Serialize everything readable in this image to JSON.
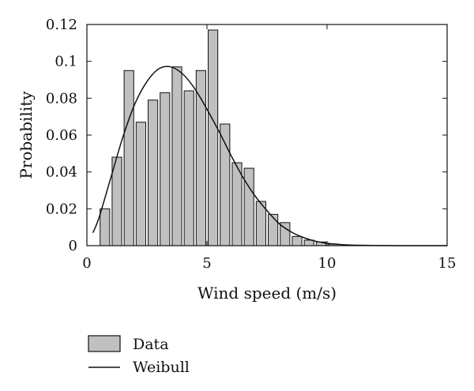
{
  "chart_data": {
    "type": "bar",
    "xlabel": "Wind speed (m/s)",
    "ylabel": "Probability",
    "xlim": [
      0,
      15
    ],
    "ylim": [
      0,
      0.12
    ],
    "xticks": [
      "0",
      "5",
      "10",
      "15"
    ],
    "yticks": [
      "0",
      "0.02",
      "0.04",
      "0.06",
      "0.08",
      "0.1",
      "0.12"
    ],
    "grid": false,
    "legend_position": "bottom-left",
    "bar_width": 0.4,
    "series": [
      {
        "name": "Data",
        "type": "bar",
        "color": "#c0c0c0",
        "x": [
          0.75,
          1.25,
          1.75,
          2.25,
          2.75,
          3.25,
          3.75,
          4.25,
          4.75,
          5.25,
          5.75,
          6.25,
          6.75,
          7.25,
          7.75,
          8.25,
          8.75,
          9.25,
          9.75,
          10.25
        ],
        "values": [
          0.02,
          0.048,
          0.095,
          0.067,
          0.079,
          0.083,
          0.097,
          0.084,
          0.095,
          0.117,
          0.066,
          0.045,
          0.042,
          0.024,
          0.017,
          0.0125,
          0.005,
          0.003,
          0.002,
          0.0008
        ]
      },
      {
        "name": "Weibull",
        "type": "line",
        "color": "#111111",
        "x": [
          0.25,
          0.5,
          1.0,
          1.5,
          2.0,
          2.5,
          3.0,
          3.5,
          4.0,
          4.5,
          5.0,
          5.5,
          6.0,
          6.5,
          7.0,
          7.5,
          8.0,
          8.5,
          9.0,
          9.5,
          10.0,
          10.5,
          11.0,
          12.0,
          13.0,
          14.0,
          15.0
        ],
        "values": [
          0.007,
          0.015,
          0.037,
          0.059,
          0.077,
          0.089,
          0.096,
          0.097,
          0.093,
          0.085,
          0.074,
          0.062,
          0.049,
          0.037,
          0.027,
          0.019,
          0.012,
          0.0075,
          0.0045,
          0.0025,
          0.0013,
          0.0007,
          0.0003,
          0.0001,
          0.0,
          0.0,
          0.0
        ]
      }
    ]
  }
}
